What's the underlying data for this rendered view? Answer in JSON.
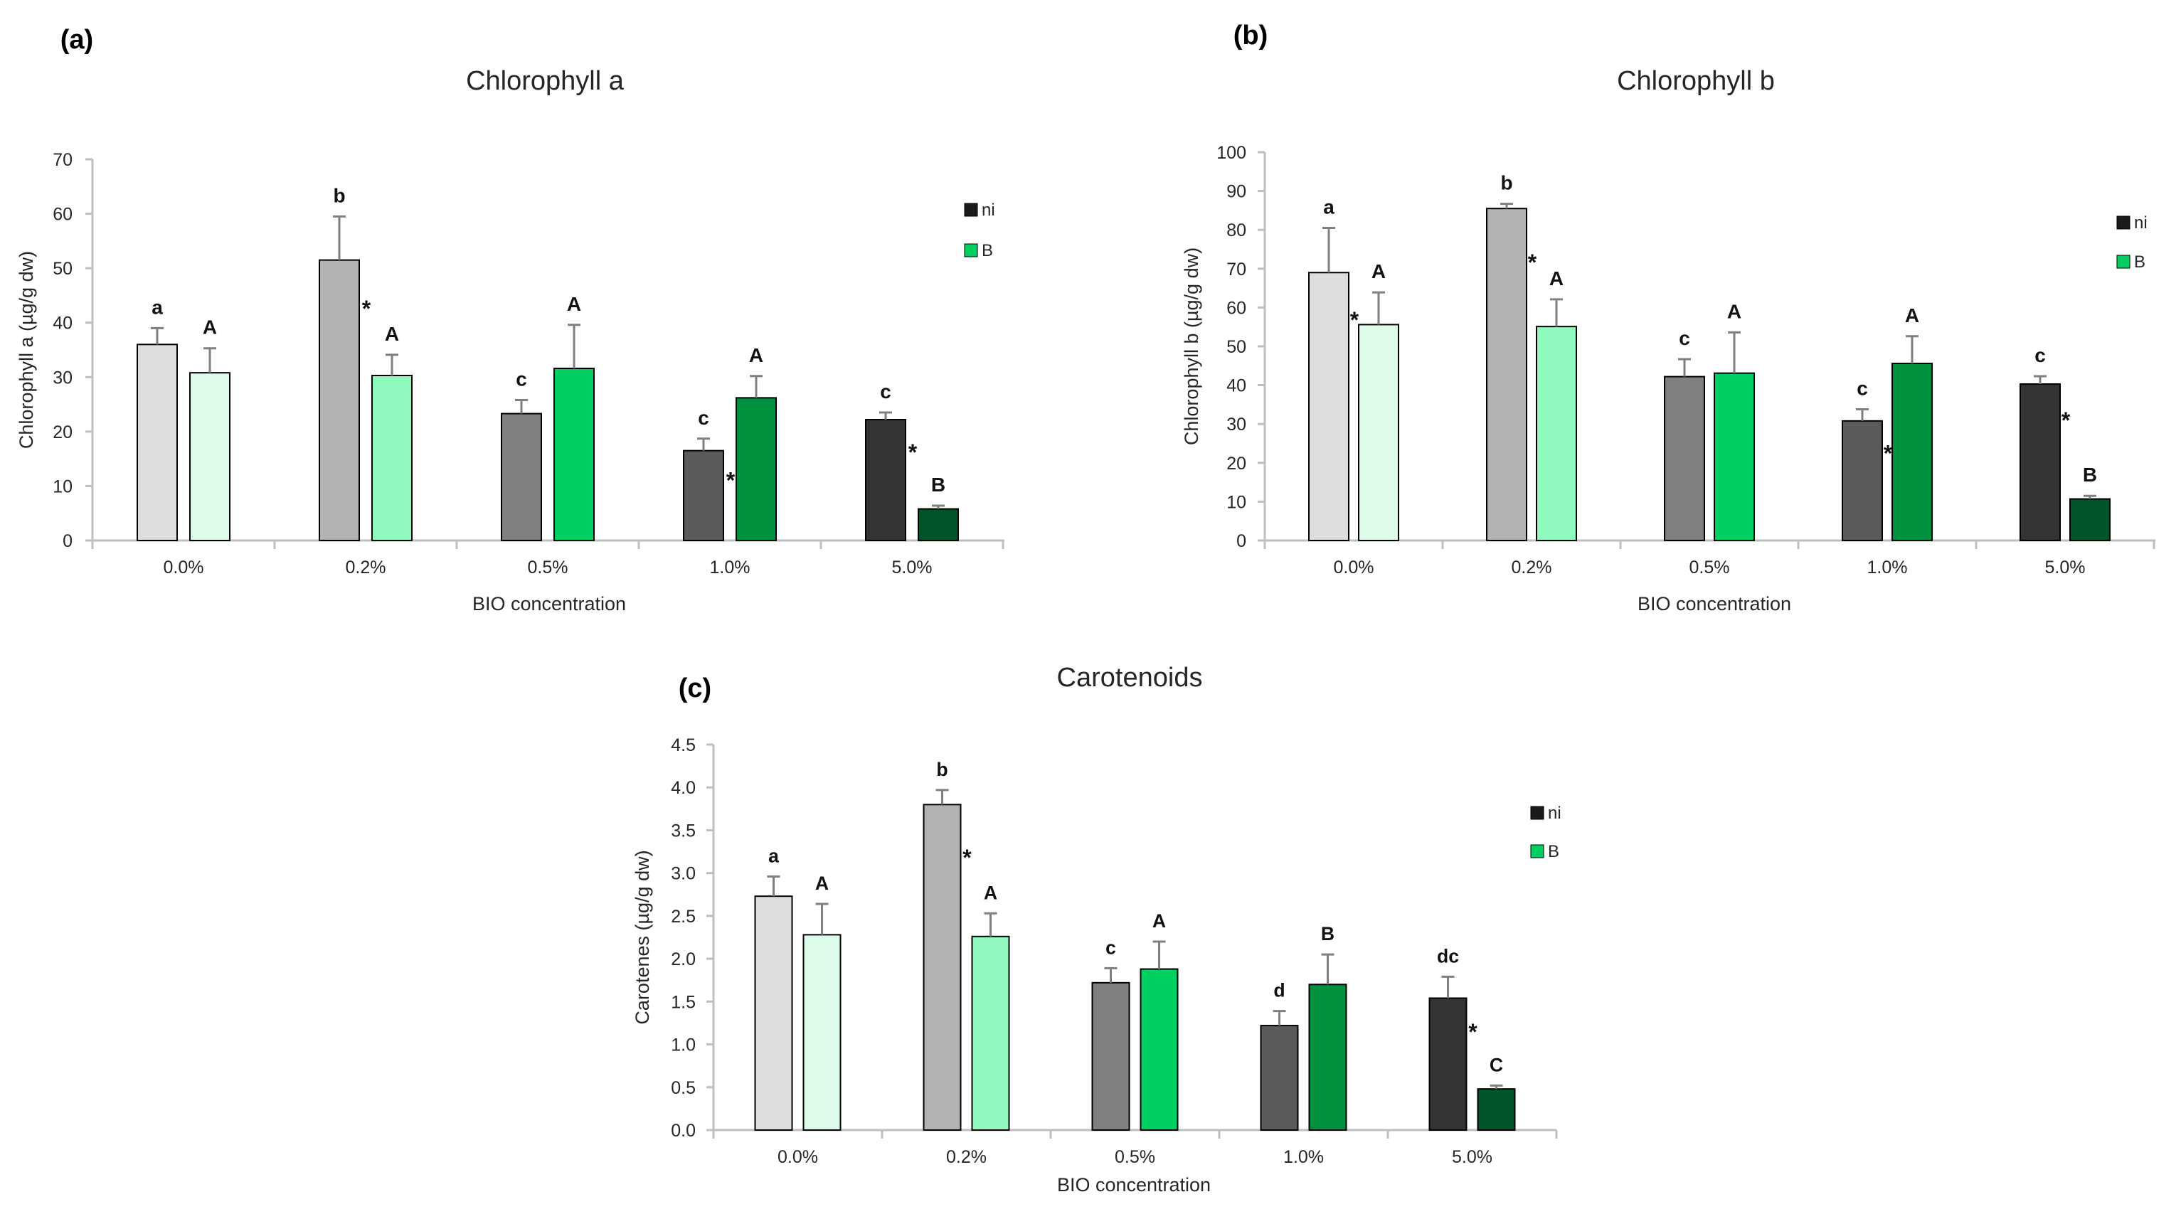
{
  "chart_data": [
    {
      "type": "bar",
      "panel": "(a)",
      "title": "Chlorophyll a",
      "xlabel": "BIO concentration",
      "ylabel": "Chlorophyll a (µg/g dw)",
      "ylim": [
        0,
        70
      ],
      "yticks": [
        0,
        10,
        20,
        30,
        40,
        50,
        60,
        70
      ],
      "categories": [
        "0.0%",
        "0.2%",
        "0.5%",
        "1.0%",
        "5.0%"
      ],
      "legend_position": "right",
      "series": [
        {
          "name": "ni",
          "values": [
            36,
            51.5,
            23.3,
            16.5,
            22.2
          ],
          "errors": [
            3,
            8,
            2.5,
            2.2,
            1.3
          ],
          "colors": [
            "#dedede",
            "#b2b2b2",
            "#808080",
            "#5a5a5a",
            "#333333"
          ],
          "letters": [
            "a",
            "b",
            "c",
            "c",
            "c"
          ],
          "stars": [
            false,
            true,
            false,
            true,
            true
          ]
        },
        {
          "name": "B",
          "values": [
            30.8,
            30.3,
            31.6,
            26.2,
            5.8
          ],
          "errors": [
            4.5,
            3.8,
            8,
            4,
            0.6
          ],
          "colors": [
            "#dcfbe8",
            "#90f9be",
            "#00d062",
            "#00913e",
            "#00542a"
          ],
          "letters": [
            "A",
            "A",
            "A",
            "A",
            "B"
          ]
        }
      ]
    },
    {
      "type": "bar",
      "panel": "(b)",
      "title": "Chlorophyll b",
      "xlabel": "BIO concentration",
      "ylabel": "Chlorophyll b (µg/g dw)",
      "ylim": [
        0,
        100
      ],
      "yticks": [
        0,
        10,
        20,
        30,
        40,
        50,
        60,
        70,
        80,
        90,
        100
      ],
      "categories": [
        "0.0%",
        "0.2%",
        "0.5%",
        "1.0%",
        "5.0%"
      ],
      "legend_position": "right",
      "series": [
        {
          "name": "ni",
          "values": [
            69,
            85.5,
            42.2,
            30.8,
            40.3
          ],
          "errors": [
            11.5,
            1.2,
            4.5,
            3,
            2
          ],
          "colors": [
            "#dedede",
            "#b2b2b2",
            "#808080",
            "#5a5a5a",
            "#333333"
          ],
          "letters": [
            "a",
            "b",
            "c",
            "c",
            "c"
          ],
          "stars": [
            true,
            true,
            false,
            true,
            true
          ]
        },
        {
          "name": "B",
          "values": [
            55.6,
            55.1,
            43.1,
            45.6,
            10.7
          ],
          "errors": [
            8.3,
            7,
            10.5,
            7,
            0.8
          ],
          "colors": [
            "#dcfbe8",
            "#90f9be",
            "#00d062",
            "#00913e",
            "#00542a"
          ],
          "letters": [
            "A",
            "A",
            "A",
            "A",
            "B"
          ]
        }
      ]
    },
    {
      "type": "bar",
      "panel": "(c)",
      "title": "Carotenoids",
      "xlabel": "BIO concentration",
      "ylabel": "Carotenes (µg/g dw)",
      "ylim": [
        0,
        4.5
      ],
      "yticks": [
        "0.0",
        "0.5",
        "1.0",
        "1.5",
        "2.0",
        "2.5",
        "3.0",
        "3.5",
        "4.0",
        "4.5"
      ],
      "categories": [
        "0.0%",
        "0.2%",
        "0.5%",
        "1.0%",
        "5.0%"
      ],
      "legend_position": "right",
      "series": [
        {
          "name": "ni",
          "values": [
            2.73,
            3.8,
            1.72,
            1.22,
            1.54
          ],
          "errors": [
            0.23,
            0.17,
            0.17,
            0.17,
            0.25
          ],
          "colors": [
            "#dedede",
            "#b2b2b2",
            "#808080",
            "#5a5a5a",
            "#333333"
          ],
          "letters": [
            "a",
            "b",
            "c",
            "d",
            "dc"
          ],
          "stars": [
            false,
            true,
            false,
            false,
            true
          ]
        },
        {
          "name": "B",
          "values": [
            2.28,
            2.26,
            1.88,
            1.7,
            0.48
          ],
          "errors": [
            0.36,
            0.27,
            0.32,
            0.35,
            0.04
          ],
          "colors": [
            "#dcfbe8",
            "#90f9be",
            "#00d062",
            "#00913e",
            "#00542a"
          ],
          "letters": [
            "A",
            "A",
            "A",
            "B",
            "C"
          ]
        }
      ]
    }
  ],
  "colors": {
    "axis": "#bfbfbf",
    "bar_outline": "#000000",
    "error_bar": "#7f7f7f",
    "legend_ni": "#1a1a1a",
    "legend_B": "#00d062"
  }
}
